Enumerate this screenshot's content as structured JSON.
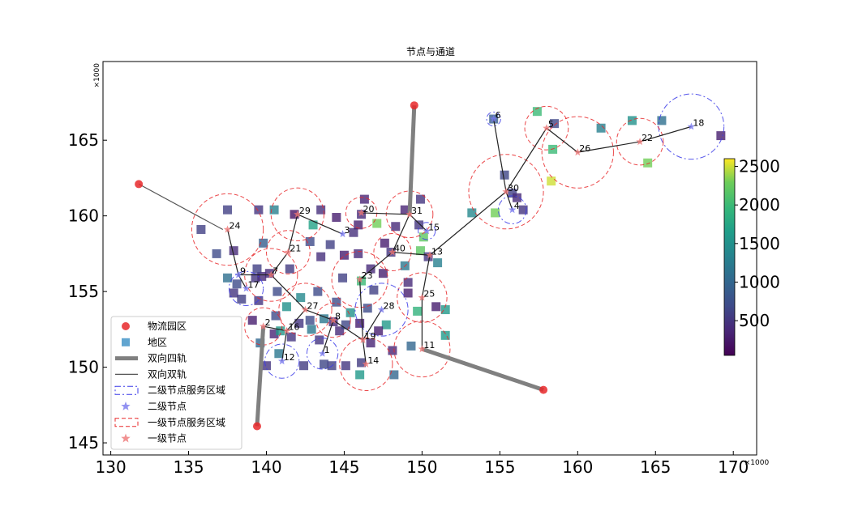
{
  "chart_data": {
    "type": "scatter",
    "title": "节点与通道",
    "x_offset_label": "×1000",
    "y_offset_label": "×1000",
    "xlim": [
      129.5,
      171.5
    ],
    "ylim": [
      144.2,
      170.2
    ],
    "xticks": [
      130,
      135,
      140,
      145,
      150,
      155,
      160,
      165,
      170
    ],
    "yticks": [
      145,
      150,
      155,
      160,
      165
    ],
    "colorbar": {
      "min": 50,
      "max": 2600,
      "ticks": [
        500,
        1000,
        1500,
        2000,
        2500
      ]
    },
    "colors": {
      "park": "#e8282a",
      "grade1": "#e8282a",
      "grade2": "#3b3be8",
      "rail4": "#808080",
      "rail2": "#555555",
      "link": "#222222"
    },
    "legend": {
      "items": [
        {
          "label": "物流园区",
          "symbol": "park"
        },
        {
          "label": "地区",
          "symbol": "region"
        },
        {
          "label": "双向四轨",
          "symbol": "rail4"
        },
        {
          "label": "双向双轨",
          "symbol": "rail2"
        },
        {
          "label": "二级节点服务区域",
          "symbol": "area2"
        },
        {
          "label": "二级节点",
          "symbol": "node2"
        },
        {
          "label": "一级节点服务区域",
          "symbol": "area1"
        },
        {
          "label": "一级节点",
          "symbol": "node1"
        }
      ]
    },
    "parks": [
      {
        "x": 131.8,
        "y": 162.1
      },
      {
        "x": 149.5,
        "y": 167.3
      },
      {
        "x": 139.4,
        "y": 146.1
      },
      {
        "x": 157.8,
        "y": 148.5
      }
    ],
    "rail4": [
      [
        [
          149.5,
          167.3
        ],
        [
          149.2,
          160.1
        ]
      ],
      [
        [
          139.4,
          146.1
        ],
        [
          139.8,
          152.7
        ]
      ],
      [
        [
          157.8,
          148.5
        ],
        [
          150.0,
          151.2
        ]
      ]
    ],
    "rail2": [
      [
        [
          131.8,
          162.1
        ],
        [
          137.2,
          159.1
        ]
      ]
    ],
    "nodes": [
      {
        "id": "1",
        "x": 143.6,
        "y": 150.9,
        "grade": 2,
        "r": 1.0
      },
      {
        "id": "2",
        "x": 139.8,
        "y": 152.7,
        "grade": 1,
        "r": 1.2
      },
      {
        "id": "3",
        "x": 144.9,
        "y": 158.8,
        "grade": 2,
        "r": 0.0
      },
      {
        "id": "4",
        "x": 155.8,
        "y": 160.4,
        "grade": 2,
        "r": 0.9
      },
      {
        "id": "5",
        "x": 158.0,
        "y": 165.8,
        "grade": 1,
        "r": 1.4
      },
      {
        "id": "6",
        "x": 154.6,
        "y": 166.4,
        "grade": 2,
        "r": 0.45
      },
      {
        "id": "7",
        "x": 140.3,
        "y": 156.1,
        "grade": 1,
        "r": 1.7
      },
      {
        "id": "8",
        "x": 144.3,
        "y": 153.1,
        "grade": 1,
        "r": 1.1
      },
      {
        "id": "9",
        "x": 138.2,
        "y": 156.1,
        "grade": 2,
        "r": 0.0
      },
      {
        "id": "11",
        "x": 150.0,
        "y": 151.2,
        "grade": 1,
        "r": 1.8
      },
      {
        "id": "12",
        "x": 141.0,
        "y": 150.4,
        "grade": 2,
        "r": 1.1
      },
      {
        "id": "13",
        "x": 150.5,
        "y": 157.4,
        "grade": 1,
        "r": 0.0
      },
      {
        "id": "14",
        "x": 146.4,
        "y": 150.2,
        "grade": 1,
        "r": 1.7
      },
      {
        "id": "15",
        "x": 150.3,
        "y": 159.0,
        "grade": 2,
        "r": 0.55
      },
      {
        "id": "16",
        "x": 141.3,
        "y": 152.4,
        "grade": 1,
        "r": 0.0
      },
      {
        "id": "17",
        "x": 138.7,
        "y": 155.2,
        "grade": 2,
        "r": 1.1
      },
      {
        "id": "18",
        "x": 167.3,
        "y": 165.9,
        "grade": 2,
        "r": 2.1
      },
      {
        "id": "19",
        "x": 146.2,
        "y": 151.8,
        "grade": 1,
        "r": 0.0
      },
      {
        "id": "20",
        "x": 146.1,
        "y": 160.2,
        "grade": 1,
        "r": 1.0
      },
      {
        "id": "21",
        "x": 141.4,
        "y": 157.6,
        "grade": 1,
        "r": 1.4
      },
      {
        "id": "22",
        "x": 164.0,
        "y": 164.9,
        "grade": 1,
        "r": 1.5
      },
      {
        "id": "23",
        "x": 146.0,
        "y": 155.8,
        "grade": 1,
        "r": 1.8
      },
      {
        "id": "24",
        "x": 137.5,
        "y": 159.1,
        "grade": 1,
        "r": 2.3
      },
      {
        "id": "25",
        "x": 150.0,
        "y": 154.6,
        "grade": 1,
        "r": 1.6
      },
      {
        "id": "26",
        "x": 160.0,
        "y": 164.2,
        "grade": 1,
        "r": 2.3
      },
      {
        "id": "27",
        "x": 142.5,
        "y": 153.8,
        "grade": 1,
        "r": 1.7
      },
      {
        "id": "28",
        "x": 147.4,
        "y": 153.8,
        "grade": 2,
        "r": 1.7
      },
      {
        "id": "29",
        "x": 142.0,
        "y": 160.1,
        "grade": 1,
        "r": 1.7
      },
      {
        "id": "30",
        "x": 155.4,
        "y": 161.6,
        "grade": 1,
        "r": 2.4
      },
      {
        "id": "31",
        "x": 149.2,
        "y": 160.1,
        "grade": 1,
        "r": 1.5
      },
      {
        "id": "40",
        "x": 148.1,
        "y": 157.6,
        "grade": 1,
        "r": 1.2
      }
    ],
    "links": [
      [
        "24",
        "9"
      ],
      [
        "9",
        "17"
      ],
      [
        "9",
        "7"
      ],
      [
        "7",
        "21"
      ],
      [
        "21",
        "29"
      ],
      [
        "29",
        "3"
      ],
      [
        "7",
        "27"
      ],
      [
        "27",
        "8"
      ],
      [
        "8",
        "1"
      ],
      [
        "27",
        "16"
      ],
      [
        "16",
        "2"
      ],
      [
        "16",
        "12"
      ],
      [
        "8",
        "19"
      ],
      [
        "19",
        "14"
      ],
      [
        "19",
        "23"
      ],
      [
        "23",
        "40"
      ],
      [
        "40",
        "31"
      ],
      [
        "31",
        "20"
      ],
      [
        "31",
        "15"
      ],
      [
        "40",
        "13"
      ],
      [
        "13",
        "25"
      ],
      [
        "25",
        "11"
      ],
      [
        "13",
        "30"
      ],
      [
        "30",
        "6"
      ],
      [
        "30",
        "4"
      ],
      [
        "30",
        "5"
      ],
      [
        "5",
        "26"
      ],
      [
        "26",
        "22"
      ],
      [
        "22",
        "18"
      ],
      [
        "28",
        "19"
      ]
    ],
    "regions": [
      [
        137.5,
        160.4,
        600
      ],
      [
        139.5,
        160.4,
        500
      ],
      [
        140.5,
        160.4,
        1300
      ],
      [
        141.8,
        160.1,
        200
      ],
      [
        143.5,
        160.4,
        450
      ],
      [
        144.5,
        159.9,
        300
      ],
      [
        146.1,
        160.1,
        400
      ],
      [
        146.3,
        161.1,
        350
      ],
      [
        147.1,
        159.5,
        2300
      ],
      [
        148.9,
        160.4,
        350
      ],
      [
        149.9,
        161.1,
        500
      ],
      [
        149.8,
        159.4,
        500
      ],
      [
        150.1,
        158.6,
        2200
      ],
      [
        149.9,
        157.7,
        2200
      ],
      [
        150.4,
        157.3,
        500
      ],
      [
        151.0,
        156.9,
        1300
      ],
      [
        148.9,
        156.7,
        1200
      ],
      [
        148.0,
        157.6,
        500
      ],
      [
        147.5,
        156.2,
        300
      ],
      [
        146.7,
        156.5,
        400
      ],
      [
        146.1,
        155.7,
        2000
      ],
      [
        146.9,
        155.1,
        600
      ],
      [
        149.1,
        155.6,
        400
      ],
      [
        149.1,
        154.9,
        300
      ],
      [
        149.7,
        153.7,
        1900
      ],
      [
        151.5,
        153.8,
        1600
      ],
      [
        147.7,
        152.8,
        1600
      ],
      [
        146.5,
        153.9,
        700
      ],
      [
        146.0,
        152.9,
        300
      ],
      [
        146.7,
        151.6,
        350
      ],
      [
        148.1,
        151.1,
        350
      ],
      [
        149.3,
        151.4,
        1000
      ],
      [
        151.5,
        152.1,
        1600
      ],
      [
        146.0,
        149.5,
        1600
      ],
      [
        146.1,
        150.3,
        550
      ],
      [
        148.2,
        149.5,
        1000
      ],
      [
        145.1,
        150.1,
        500
      ],
      [
        143.7,
        150.2,
        650
      ],
      [
        142.4,
        150.1,
        550
      ],
      [
        140.0,
        150.1,
        500
      ],
      [
        139.6,
        151.6,
        1000
      ],
      [
        140.5,
        152.2,
        350
      ],
      [
        140.9,
        152.4,
        1600
      ],
      [
        141.6,
        152.0,
        500
      ],
      [
        142.1,
        152.9,
        500
      ],
      [
        142.9,
        152.5,
        1200
      ],
      [
        143.4,
        151.8,
        500
      ],
      [
        143.7,
        153.2,
        1200
      ],
      [
        142.8,
        153.1,
        700
      ],
      [
        144.3,
        153.0,
        400
      ],
      [
        144.7,
        152.4,
        400
      ],
      [
        145.1,
        152.8,
        650
      ],
      [
        145.4,
        153.6,
        1500
      ],
      [
        144.5,
        154.3,
        700
      ],
      [
        143.3,
        155.0,
        700
      ],
      [
        142.2,
        154.6,
        1400
      ],
      [
        141.3,
        154.0,
        1500
      ],
      [
        140.6,
        153.4,
        700
      ],
      [
        139.1,
        153.1,
        300
      ],
      [
        139.5,
        154.4,
        500
      ],
      [
        138.4,
        154.5,
        600
      ],
      [
        137.9,
        154.9,
        500
      ],
      [
        138.1,
        155.5,
        700
      ],
      [
        139.3,
        155.9,
        500
      ],
      [
        139.7,
        156.0,
        400
      ],
      [
        140.2,
        156.2,
        400
      ],
      [
        140.7,
        155.0,
        700
      ],
      [
        139.4,
        156.5,
        600
      ],
      [
        137.5,
        155.9,
        1100
      ],
      [
        137.9,
        157.7,
        400
      ],
      [
        136.8,
        157.5,
        700
      ],
      [
        135.8,
        159.1,
        600
      ],
      [
        139.8,
        158.2,
        900
      ],
      [
        141.5,
        156.5,
        550
      ],
      [
        142.8,
        158.3,
        700
      ],
      [
        143.5,
        157.3,
        450
      ],
      [
        144.1,
        158.1,
        600
      ],
      [
        145.6,
        158.9,
        450
      ],
      [
        145.0,
        157.4,
        300
      ],
      [
        145.9,
        157.5,
        400
      ],
      [
        144.9,
        155.9,
        600
      ],
      [
        143.0,
        159.4,
        1700
      ],
      [
        145.9,
        159.4,
        300
      ],
      [
        148.3,
        159.3,
        400
      ],
      [
        147.6,
        158.2,
        300
      ],
      [
        153.2,
        160.2,
        1400
      ],
      [
        154.7,
        160.2,
        2300
      ],
      [
        155.8,
        161.5,
        600
      ],
      [
        156.1,
        161.2,
        400
      ],
      [
        156.5,
        160.4,
        500
      ],
      [
        155.3,
        162.7,
        650
      ],
      [
        154.6,
        166.4,
        900
      ],
      [
        157.4,
        166.9,
        2000
      ],
      [
        158.5,
        166.1,
        650
      ],
      [
        158.4,
        164.4,
        2000
      ],
      [
        158.3,
        162.3,
        2500
      ],
      [
        161.5,
        165.8,
        1300
      ],
      [
        163.5,
        166.3,
        1500
      ],
      [
        165.4,
        166.3,
        1100
      ],
      [
        164.5,
        163.5,
        2300
      ],
      [
        169.2,
        165.3,
        300
      ],
      [
        140.8,
        150.9,
        1200
      ],
      [
        144.2,
        150.1,
        600
      ],
      [
        150.9,
        154.0,
        300
      ],
      [
        147.2,
        152.4,
        300
      ]
    ]
  }
}
